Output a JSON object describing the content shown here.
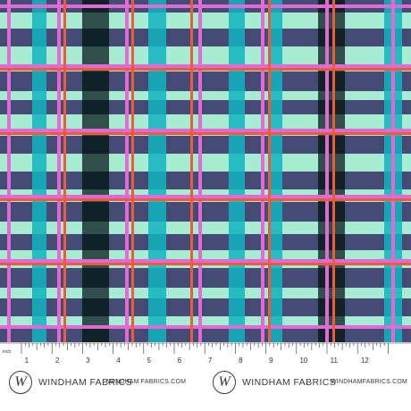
{
  "fabric": {
    "colors": {
      "mint": "#a6ebd2",
      "teal": "#0fb4c0",
      "navy": "#3c3d6b",
      "ink": "#0f2227",
      "pink": "#e06bd3",
      "orange": "#f05a3a",
      "selvage": "#ffffff"
    }
  },
  "ruler": {
    "unit": "inch",
    "numbers": [
      "1",
      "2",
      "3",
      "4",
      "5",
      "6",
      "7",
      "8",
      "9",
      "10",
      "11",
      "12"
    ]
  },
  "selvage": {
    "logos": [
      {
        "mark": "W",
        "name": "WINDHAM FABRICS"
      },
      {
        "mark": "W",
        "name": "WINDHAM FABRICS"
      }
    ],
    "urls": [
      "WINDHAM FABRICS.COM",
      "WINDHAMFABRICS.COM"
    ]
  }
}
